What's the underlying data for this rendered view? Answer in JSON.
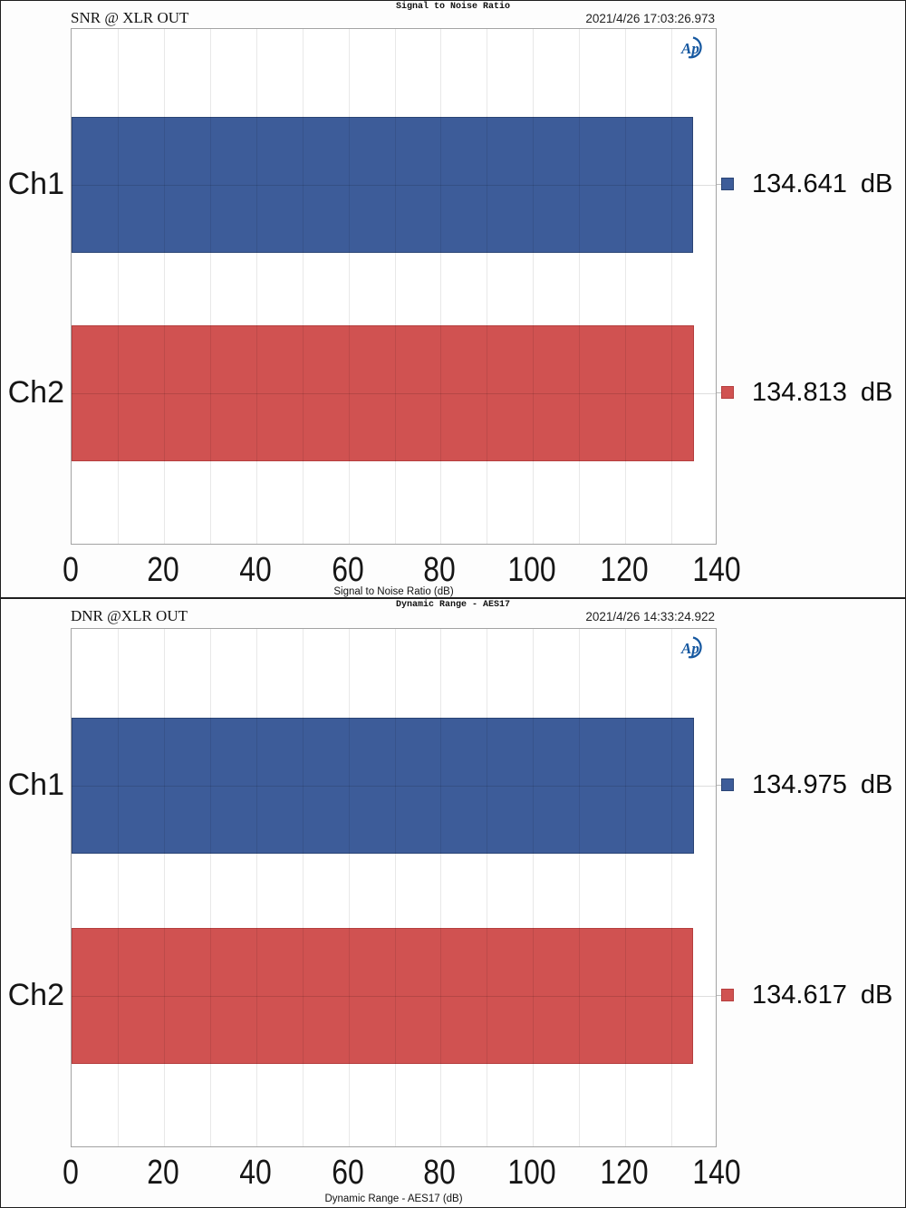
{
  "colors": {
    "ch1_blue": "#3D5C99",
    "ch1_blue_border": "#2A4475",
    "ch2_red": "#D05251",
    "ch2_red_border": "#B53E3E",
    "logo_blue": "#1658A0",
    "plot_border": "#A3A3A3",
    "panel_border": "#1F1F1F"
  },
  "chart_data": [
    {
      "type": "bar",
      "orientation": "horizontal",
      "title": "Signal to Noise Ratio",
      "header_left": "SNR @ XLR OUT",
      "timestamp": "2021/4/26 17:03:26.973",
      "logo_text": "Ap",
      "categories": [
        "Ch1",
        "Ch2"
      ],
      "values": [
        134.641,
        134.813
      ],
      "value_labels": [
        "134.641 dB",
        "134.813 dB"
      ],
      "bar_colors": [
        "#3D5C99",
        "#D05251"
      ],
      "bar_border_colors": [
        "#2A4475",
        "#B53E3E"
      ],
      "xlabel": "Signal to Noise Ratio (dB)",
      "xlim": [
        0,
        140
      ],
      "xticks": [
        0,
        20,
        40,
        60,
        80,
        100,
        120,
        140
      ],
      "grid": true,
      "grid_step": 10,
      "legend_position": "right"
    },
    {
      "type": "bar",
      "orientation": "horizontal",
      "title": "Dynamic Range - AES17",
      "header_left": "DNR @XLR OUT",
      "timestamp": "2021/4/26 14:33:24.922",
      "logo_text": "Ap",
      "categories": [
        "Ch1",
        "Ch2"
      ],
      "values": [
        134.975,
        134.617
      ],
      "value_labels": [
        "134.975 dB",
        "134.617 dB"
      ],
      "bar_colors": [
        "#3D5C99",
        "#D05251"
      ],
      "bar_border_colors": [
        "#2A4475",
        "#B53E3E"
      ],
      "xlabel": "Dynamic Range - AES17 (dB)",
      "xlim": [
        0,
        140
      ],
      "xticks": [
        0,
        20,
        40,
        60,
        80,
        100,
        120,
        140
      ],
      "grid": true,
      "grid_step": 10,
      "legend_position": "right"
    }
  ]
}
